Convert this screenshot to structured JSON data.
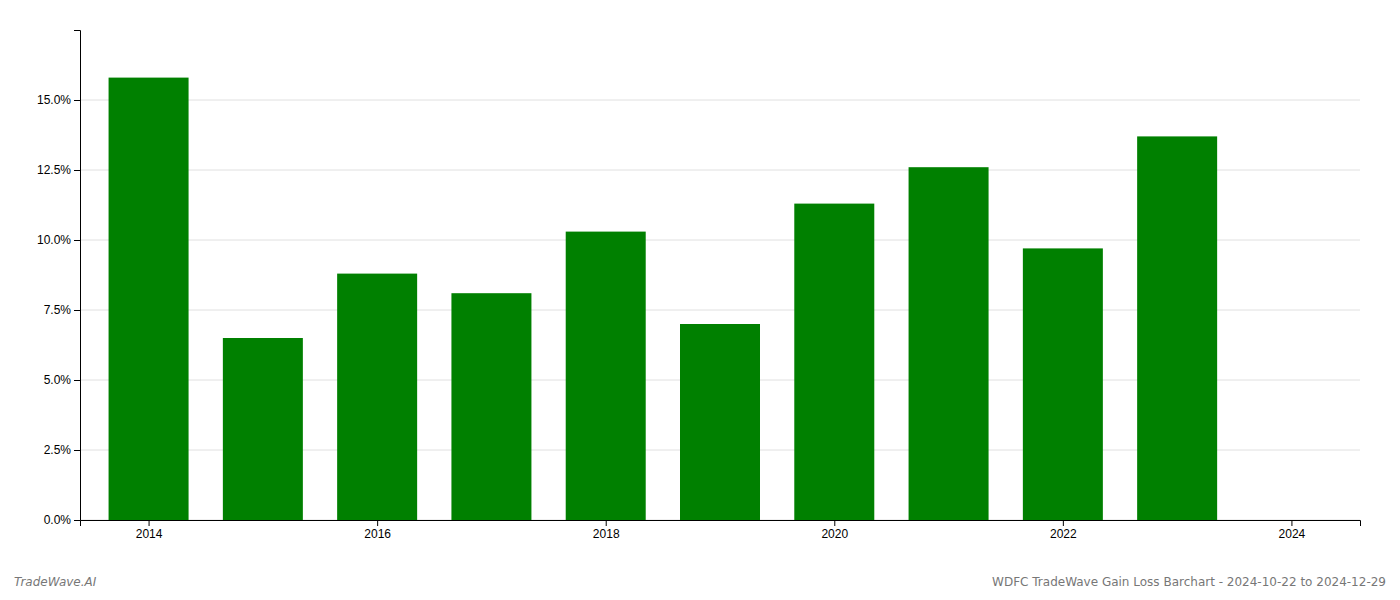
{
  "chart_data": {
    "type": "bar",
    "x": [
      2014,
      2015,
      2016,
      2017,
      2018,
      2019,
      2020,
      2021,
      2022,
      2023
    ],
    "values": [
      0.158,
      0.065,
      0.088,
      0.081,
      0.103,
      0.07,
      0.113,
      0.126,
      0.097,
      0.137
    ],
    "color": "#008000",
    "xlim": [
      2013.4,
      2024.6
    ],
    "xticks": [
      2014,
      2016,
      2018,
      2020,
      2022,
      2024
    ],
    "ylim": [
      0,
      0.175
    ],
    "yticks": [
      {
        "value": 0.0,
        "label": "0.0%"
      },
      {
        "value": 0.025,
        "label": "2.5%"
      },
      {
        "value": 0.05,
        "label": "5.0%"
      },
      {
        "value": 0.075,
        "label": "7.5%"
      },
      {
        "value": 0.1,
        "label": "10.0%"
      },
      {
        "value": 0.125,
        "label": "12.5%"
      },
      {
        "value": 0.15,
        "label": "15.0%"
      }
    ],
    "grid": true,
    "annotations": [
      "TradeWave.AI",
      "WDFC TradeWave Gain Loss Barchart - 2024-10-22 to 2024-12-29"
    ]
  }
}
